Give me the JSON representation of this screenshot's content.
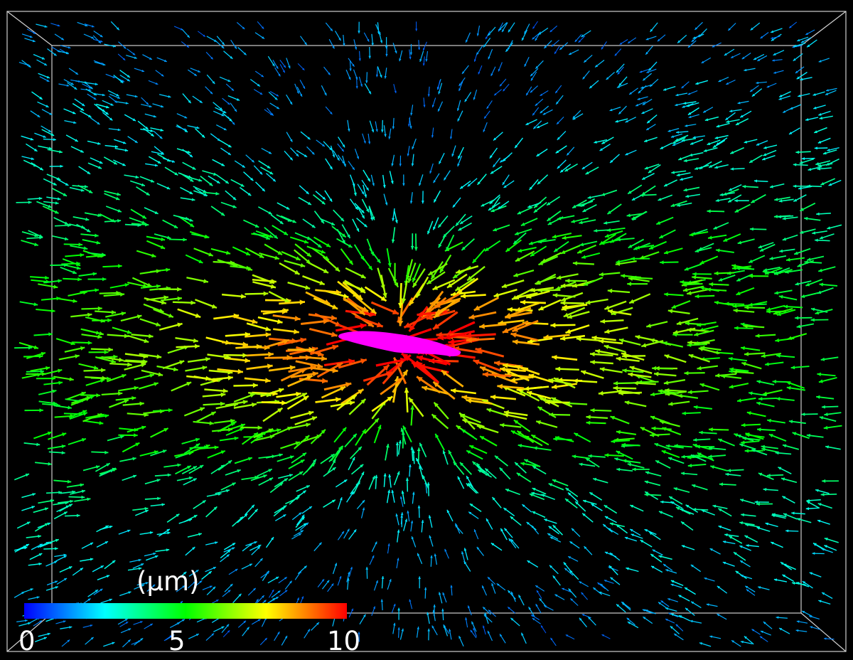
{
  "colorbar": {
    "unit_label": "(μm)",
    "min_label": "0",
    "mid_label": "5",
    "max_label": "10",
    "min_value": 0,
    "max_value": 10,
    "colors": [
      "#0000ff",
      "#00ffff",
      "#00ff00",
      "#ffff00",
      "#ff0000"
    ]
  },
  "scene": {
    "background_color": "#000000",
    "bounding_box_color": "#cfcfcf",
    "cell_color": "#ff00ff",
    "description_free": true
  }
}
